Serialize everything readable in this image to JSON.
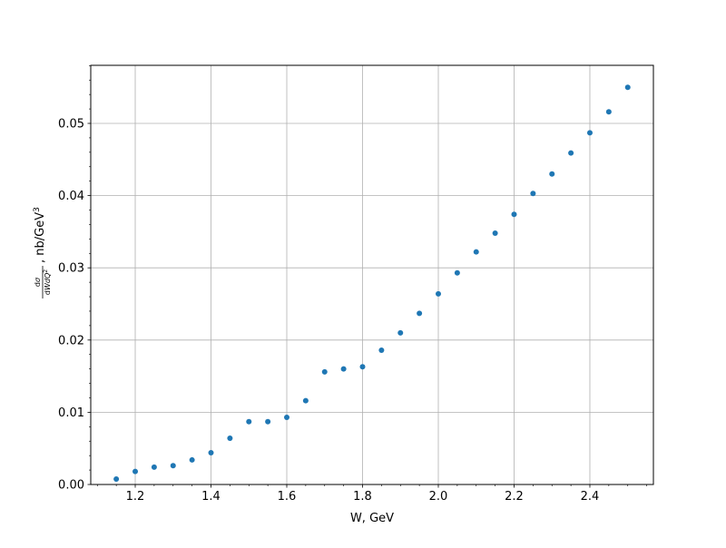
{
  "chart_data": {
    "type": "scatter",
    "title": "",
    "xlabel": "W, GeV",
    "ylabel": "dσ/dWdQ², nb/GeV³",
    "xlim": [
      1.0826,
      2.5677
    ],
    "ylim": [
      0,
      0.05804
    ],
    "grid": true,
    "x_ticks": [
      1.2,
      1.4,
      1.6,
      1.8,
      2.0,
      2.2,
      2.4
    ],
    "x_tick_labels": [
      "1.2",
      "1.4",
      "1.6",
      "1.8",
      "2.0",
      "2.2",
      "2.4"
    ],
    "y_ticks": [
      0,
      0.01,
      0.02,
      0.03,
      0.04,
      0.05
    ],
    "y_tick_labels": [
      "0.00",
      "0.01",
      "0.02",
      "0.03",
      "0.04",
      "0.05"
    ],
    "marker_color": "#1f77b4",
    "x": [
      1.15,
      1.2,
      1.25,
      1.3,
      1.35,
      1.4,
      1.45,
      1.5,
      1.55,
      1.6,
      1.65,
      1.7,
      1.75,
      1.8,
      1.85,
      1.9,
      1.95,
      2.0,
      2.05,
      2.1,
      2.15,
      2.2,
      2.25,
      2.3,
      2.35,
      2.4,
      2.45,
      2.5
    ],
    "y": [
      0.00075,
      0.0018,
      0.0024,
      0.0026,
      0.0034,
      0.0044,
      0.0064,
      0.0087,
      0.0087,
      0.0093,
      0.0116,
      0.0156,
      0.016,
      0.0163,
      0.0186,
      0.021,
      0.0237,
      0.0264,
      0.0293,
      0.0322,
      0.0348,
      0.0374,
      0.0403,
      0.043,
      0.0459,
      0.0487,
      0.0516,
      0.055
    ]
  }
}
